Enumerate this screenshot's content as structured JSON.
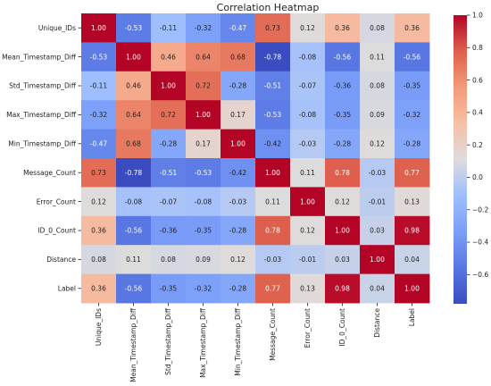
{
  "chart_data": {
    "type": "heatmap",
    "title": "Correlation Heatmap",
    "labels": [
      "Unique_IDs",
      "Mean_Timestamp_Diff",
      "Std_Timestamp_Diff",
      "Max_Timestamp_Diff",
      "Min_Timestamp_Diff",
      "Message_Count",
      "Error_Count",
      "ID_0_Count",
      "Distance",
      "Label"
    ],
    "matrix": [
      [
        1.0,
        -0.53,
        -0.11,
        -0.32,
        -0.47,
        0.73,
        0.12,
        0.36,
        0.08,
        0.36
      ],
      [
        -0.53,
        1.0,
        0.46,
        0.64,
        0.68,
        -0.78,
        -0.08,
        -0.56,
        0.11,
        -0.56
      ],
      [
        -0.11,
        0.46,
        1.0,
        0.72,
        -0.28,
        -0.51,
        -0.07,
        -0.36,
        0.08,
        -0.35
      ],
      [
        -0.32,
        0.64,
        0.72,
        1.0,
        0.17,
        -0.53,
        -0.08,
        -0.35,
        0.09,
        -0.32
      ],
      [
        -0.47,
        0.68,
        -0.28,
        0.17,
        1.0,
        -0.42,
        -0.03,
        -0.28,
        0.12,
        -0.28
      ],
      [
        0.73,
        -0.78,
        -0.51,
        -0.53,
        -0.42,
        1.0,
        0.11,
        0.78,
        -0.03,
        0.77
      ],
      [
        0.12,
        -0.08,
        -0.07,
        -0.08,
        -0.03,
        0.11,
        1.0,
        0.12,
        -0.01,
        0.13
      ],
      [
        0.36,
        -0.56,
        -0.36,
        -0.35,
        -0.28,
        0.78,
        0.12,
        1.0,
        0.03,
        0.98
      ],
      [
        0.08,
        0.11,
        0.08,
        0.09,
        0.12,
        -0.03,
        -0.01,
        0.03,
        1.0,
        0.04
      ],
      [
        0.36,
        -0.56,
        -0.35,
        -0.32,
        -0.28,
        0.77,
        0.13,
        0.98,
        0.04,
        1.0
      ]
    ],
    "colormap": "coolwarm",
    "colorbar": {
      "range": [
        -0.78,
        1.0
      ],
      "ticks": [
        -0.6,
        -0.4,
        -0.2,
        0.0,
        0.2,
        0.4,
        0.6,
        0.8,
        1.0
      ],
      "tick_labels": [
        "−0.6",
        "−0.4",
        "−0.2",
        "0.0",
        "0.2",
        "0.4",
        "0.6",
        "0.8",
        "1.0"
      ]
    },
    "annotation_format": "0.00",
    "legend": "colorbar-right"
  }
}
